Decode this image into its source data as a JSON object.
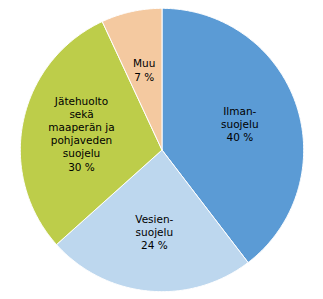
{
  "chart_data": {
    "type": "pie",
    "categories": [
      "Ilman-\nsuojelu\n40 %",
      "Vesien-\nsuojelu\n24 %",
      "Jätehuolto\nsekä\nmaaperän ja\npohjaveden\nsuojelu\n30 %",
      "Muu\n7 %"
    ],
    "values": [
      40,
      24,
      30,
      7
    ],
    "colors": [
      "#5B9BD5",
      "#BDD7EE",
      "#BDCD4A",
      "#F4C9A0"
    ],
    "tick_labels": false
  }
}
